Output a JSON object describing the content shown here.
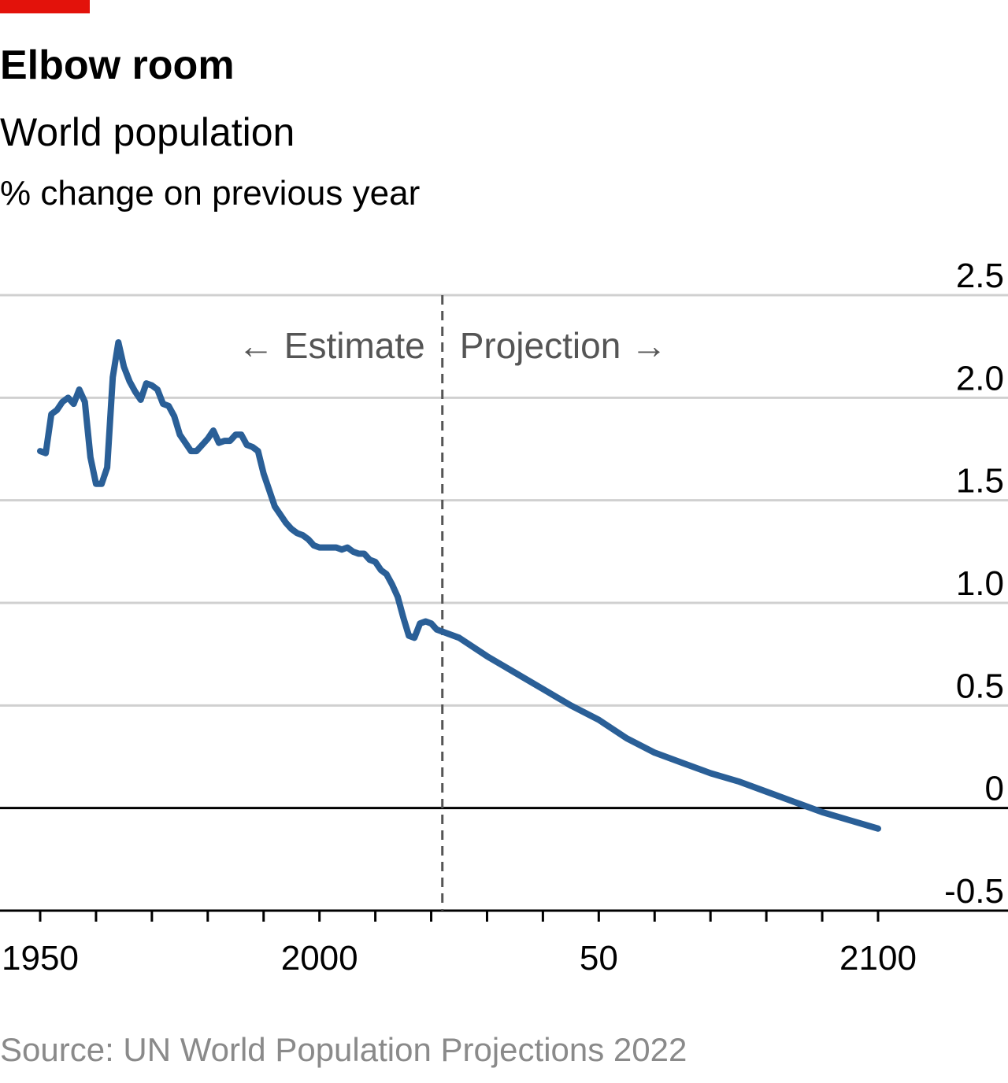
{
  "chart_data": {
    "type": "line",
    "title": "Elbow room",
    "subtitle": "World population",
    "unit_label": "% change on previous year",
    "source": "Source: UN World Population Projections 2022",
    "annotations": [
      "← Estimate",
      "Projection →"
    ],
    "divider_x": 2022,
    "x": [
      1950,
      1951,
      1952,
      1953,
      1954,
      1955,
      1956,
      1957,
      1958,
      1959,
      1960,
      1961,
      1962,
      1963,
      1964,
      1965,
      1966,
      1967,
      1968,
      1969,
      1970,
      1971,
      1972,
      1973,
      1974,
      1975,
      1976,
      1977,
      1978,
      1979,
      1980,
      1981,
      1982,
      1983,
      1984,
      1985,
      1986,
      1987,
      1988,
      1989,
      1990,
      1991,
      1992,
      1993,
      1994,
      1995,
      1996,
      1997,
      1998,
      1999,
      2000,
      2001,
      2002,
      2003,
      2004,
      2005,
      2006,
      2007,
      2008,
      2009,
      2010,
      2011,
      2012,
      2013,
      2014,
      2015,
      2016,
      2017,
      2018,
      2019,
      2020,
      2021,
      2025,
      2030,
      2035,
      2040,
      2045,
      2050,
      2055,
      2060,
      2065,
      2070,
      2075,
      2080,
      2085,
      2090,
      2095,
      2100
    ],
    "series": [
      {
        "name": "World population",
        "color": "#2a5f97",
        "values": [
          1.74,
          1.73,
          1.92,
          1.94,
          1.98,
          2.0,
          1.97,
          2.04,
          1.98,
          1.71,
          1.58,
          1.58,
          1.66,
          2.1,
          2.27,
          2.15,
          2.08,
          2.03,
          1.99,
          2.07,
          2.06,
          2.04,
          1.97,
          1.96,
          1.91,
          1.82,
          1.78,
          1.74,
          1.74,
          1.77,
          1.8,
          1.84,
          1.78,
          1.79,
          1.79,
          1.82,
          1.82,
          1.77,
          1.76,
          1.74,
          1.63,
          1.55,
          1.47,
          1.43,
          1.39,
          1.36,
          1.34,
          1.33,
          1.31,
          1.28,
          1.27,
          1.27,
          1.27,
          1.27,
          1.26,
          1.27,
          1.25,
          1.24,
          1.24,
          1.21,
          1.2,
          1.16,
          1.14,
          1.09,
          1.03,
          0.93,
          0.84,
          0.83,
          0.9,
          0.91,
          0.9,
          0.87,
          0.83,
          0.74,
          0.66,
          0.58,
          0.5,
          0.43,
          0.34,
          0.27,
          0.22,
          0.17,
          0.13,
          0.08,
          0.03,
          -0.02,
          -0.06,
          -0.1
        ]
      }
    ],
    "xlim": [
      1950,
      2100
    ],
    "xticks": [
      1950,
      2000,
      {
        "value": 2050,
        "label": "50"
      },
      2100
    ],
    "xminor_ticks": [
      1960,
      1970,
      1980,
      1990,
      2010,
      2020,
      2030,
      2040,
      2060,
      2070,
      2080,
      2090
    ],
    "ylim": [
      -0.5,
      2.5
    ],
    "yticks": [
      2.5,
      {
        "value": 2,
        "label": "2.0"
      },
      1.5,
      {
        "value": 1,
        "label": "1.0"
      },
      0.5,
      0,
      -0.5
    ],
    "grid": true
  }
}
